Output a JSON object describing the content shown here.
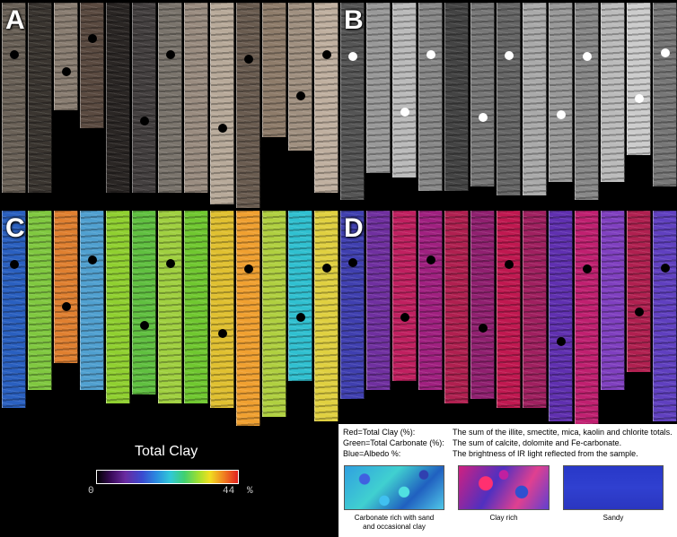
{
  "panels": {
    "a": {
      "label": "A"
    },
    "b": {
      "label": "B"
    },
    "c": {
      "label": "C"
    },
    "d": {
      "label": "D"
    }
  },
  "colorbar": {
    "title": "Total Clay",
    "min_label": "0",
    "max_label": "44",
    "unit": "%"
  },
  "legend": {
    "rows": [
      {
        "key": "Red=Total Clay (%):",
        "desc": "The sum of the illite, smectite, mica, kaolin and chlorite totals."
      },
      {
        "key": "Green=Total Carbonate (%):",
        "desc": "The sum of calcite, dolomite and Fe-carbonate."
      },
      {
        "key": "Blue=Albedo %:",
        "desc": "The brightness of IR light reflected from the sample."
      }
    ],
    "swatches": [
      {
        "label_line1": "Carbonate rich with sand",
        "label_line2": "and  occasional clay"
      },
      {
        "label_line1": "Clay rich",
        "label_line2": ""
      },
      {
        "label_line1": "Sandy",
        "label_line2": ""
      }
    ]
  }
}
